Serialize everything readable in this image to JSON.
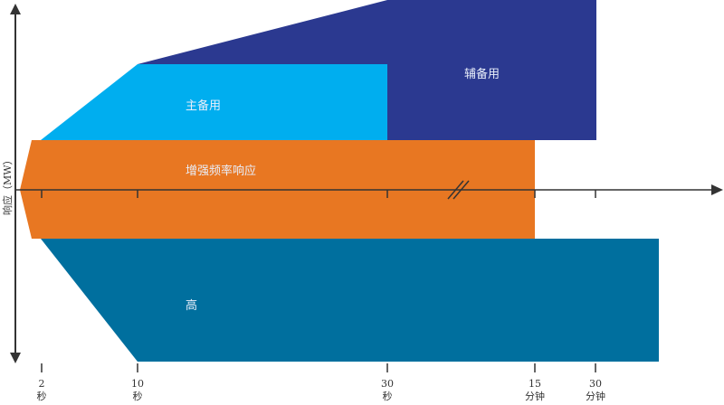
{
  "diagram": {
    "y_axis_label": "响应（MW）",
    "regions": [
      {
        "id": "secondary",
        "label": "辅备用",
        "color": "#2b3990"
      },
      {
        "id": "primary",
        "label": "主备用",
        "color": "#00aeef"
      },
      {
        "id": "efr",
        "label": "增强频率响应",
        "color": "#e87722"
      },
      {
        "id": "high",
        "label": "高",
        "color": "#006f9e"
      }
    ],
    "time_ticks": [
      {
        "value": "2",
        "unit": "秒"
      },
      {
        "value": "10",
        "unit": "秒"
      },
      {
        "value": "30",
        "unit": "秒"
      },
      {
        "value": "15",
        "unit": "分钟"
      },
      {
        "value": "30",
        "unit": "分钟"
      }
    ],
    "axis_color": "#333333"
  }
}
